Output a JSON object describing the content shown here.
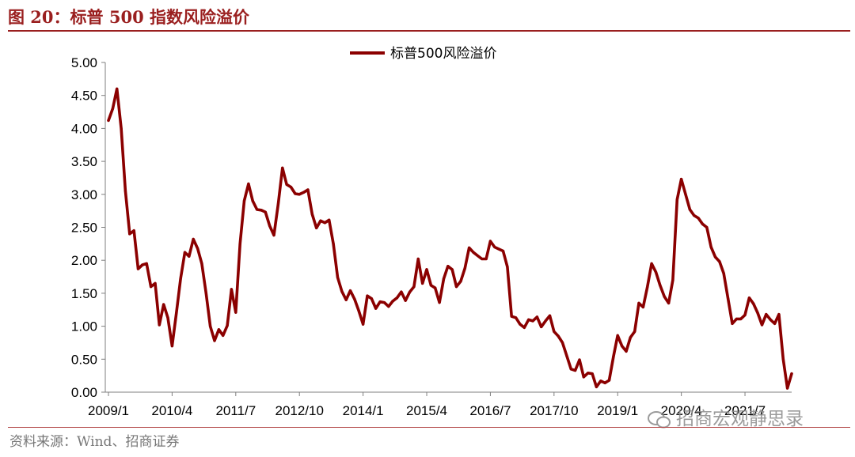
{
  "header": {
    "title": "图 20：标普 500 指数风险溢价"
  },
  "footer": {
    "source": "资料来源：Wind、招商证券",
    "watermark": "招商宏观静思录"
  },
  "colors": {
    "accent": "#9a1f1f",
    "series": "#8b0000"
  },
  "chart_data": {
    "type": "line",
    "ylim": [
      0,
      5
    ],
    "y_ticks": [
      "0.00",
      "0.50",
      "1.00",
      "1.50",
      "2.00",
      "2.50",
      "3.00",
      "3.50",
      "4.00",
      "4.50",
      "5.00"
    ],
    "x_ticks": [
      "2009/1",
      "2010/4",
      "2011/7",
      "2012/10",
      "2014/1",
      "2015/4",
      "2016/7",
      "2017/10",
      "2019/1",
      "2020/4",
      "2021/7"
    ],
    "grid": false,
    "legend_position": "top-center",
    "series": [
      {
        "name": "标普500风险溢价",
        "color": "#8b0000",
        "x": [
          "2009/1",
          "2009/2",
          "2009/3",
          "2009/4",
          "2009/5",
          "2009/6",
          "2009/7",
          "2009/8",
          "2009/9",
          "2009/10",
          "2009/11",
          "2009/12",
          "2010/1",
          "2010/2",
          "2010/3",
          "2010/4",
          "2010/5",
          "2010/6",
          "2010/7",
          "2010/8",
          "2010/9",
          "2010/10",
          "2010/11",
          "2010/12",
          "2011/1",
          "2011/2",
          "2011/3",
          "2011/4",
          "2011/5",
          "2011/6",
          "2011/7",
          "2011/8",
          "2011/9",
          "2011/10",
          "2011/11",
          "2011/12",
          "2012/1",
          "2012/2",
          "2012/3",
          "2012/4",
          "2012/5",
          "2012/6",
          "2012/7",
          "2012/8",
          "2012/9",
          "2012/10",
          "2012/11",
          "2012/12",
          "2013/1",
          "2013/2",
          "2013/3",
          "2013/4",
          "2013/5",
          "2013/6",
          "2013/7",
          "2013/8",
          "2013/9",
          "2013/10",
          "2013/11",
          "2013/12",
          "2014/1",
          "2014/2",
          "2014/3",
          "2014/4",
          "2014/5",
          "2014/6",
          "2014/7",
          "2014/8",
          "2014/9",
          "2014/10",
          "2014/11",
          "2014/12",
          "2015/1",
          "2015/2",
          "2015/3",
          "2015/4",
          "2015/5",
          "2015/6",
          "2015/7",
          "2015/8",
          "2015/9",
          "2015/10",
          "2015/11",
          "2015/12",
          "2016/1",
          "2016/2",
          "2016/3",
          "2016/4",
          "2016/5",
          "2016/6",
          "2016/7",
          "2016/8",
          "2016/9",
          "2016/10",
          "2016/11",
          "2016/12",
          "2017/1",
          "2017/2",
          "2017/3",
          "2017/4",
          "2017/5",
          "2017/6",
          "2017/7",
          "2017/8",
          "2017/9",
          "2017/10",
          "2017/11",
          "2017/12",
          "2018/1",
          "2018/2",
          "2018/3",
          "2018/4",
          "2018/5",
          "2018/6",
          "2018/7",
          "2018/8",
          "2018/9",
          "2018/10",
          "2018/11",
          "2018/12",
          "2019/1",
          "2019/2",
          "2019/3",
          "2019/4",
          "2019/5",
          "2019/6",
          "2019/7",
          "2019/8",
          "2019/9",
          "2019/10",
          "2019/11",
          "2019/12",
          "2020/1",
          "2020/2",
          "2020/3",
          "2020/4",
          "2020/5",
          "2020/6",
          "2020/7",
          "2020/8",
          "2020/9",
          "2020/10",
          "2020/11",
          "2020/12",
          "2021/1",
          "2021/2",
          "2021/3",
          "2021/4",
          "2021/5",
          "2021/6",
          "2021/7",
          "2021/8",
          "2021/9",
          "2021/10",
          "2021/11",
          "2021/12",
          "2022/1",
          "2022/2",
          "2022/3",
          "2022/4",
          "2022/5",
          "2022/6"
        ],
        "values": [
          4.12,
          4.3,
          4.6,
          4.0,
          3.05,
          2.4,
          2.45,
          1.87,
          1.93,
          1.95,
          1.6,
          1.65,
          1.02,
          1.33,
          1.13,
          0.7,
          1.2,
          1.72,
          2.12,
          2.06,
          2.32,
          2.18,
          1.95,
          1.5,
          1.0,
          0.78,
          0.95,
          0.86,
          1.01,
          1.56,
          1.21,
          2.25,
          2.9,
          3.16,
          2.9,
          2.77,
          2.76,
          2.73,
          2.52,
          2.38,
          2.85,
          3.4,
          3.15,
          3.11,
          3.01,
          3.0,
          3.03,
          3.07,
          2.7,
          2.49,
          2.6,
          2.57,
          2.61,
          2.25,
          1.74,
          1.53,
          1.4,
          1.54,
          1.41,
          1.23,
          1.03,
          1.46,
          1.42,
          1.27,
          1.37,
          1.36,
          1.3,
          1.38,
          1.43,
          1.52,
          1.39,
          1.52,
          1.6,
          2.02,
          1.65,
          1.86,
          1.62,
          1.58,
          1.36,
          1.72,
          1.91,
          1.86,
          1.6,
          1.68,
          1.88,
          2.19,
          2.12,
          2.07,
          2.02,
          2.02,
          2.29,
          2.2,
          2.17,
          2.14,
          1.9,
          1.15,
          1.13,
          1.03,
          0.98,
          1.1,
          1.08,
          1.14,
          0.99,
          1.08,
          1.16,
          0.92,
          0.85,
          0.75,
          0.55,
          0.35,
          0.33,
          0.49,
          0.23,
          0.29,
          0.28,
          0.08,
          0.17,
          0.14,
          0.18,
          0.54,
          0.86,
          0.7,
          0.62,
          0.83,
          0.92,
          1.35,
          1.29,
          1.6,
          1.95,
          1.82,
          1.62,
          1.45,
          1.35,
          1.7,
          2.92,
          3.23,
          3.0,
          2.77,
          2.68,
          2.64,
          2.55,
          2.5,
          2.2,
          2.05,
          1.98,
          1.8,
          1.42,
          1.04,
          1.11,
          1.11,
          1.17,
          1.43,
          1.34,
          1.2,
          1.02,
          1.18,
          1.1,
          1.04,
          1.18,
          0.5,
          0.06,
          0.28
        ]
      }
    ]
  }
}
